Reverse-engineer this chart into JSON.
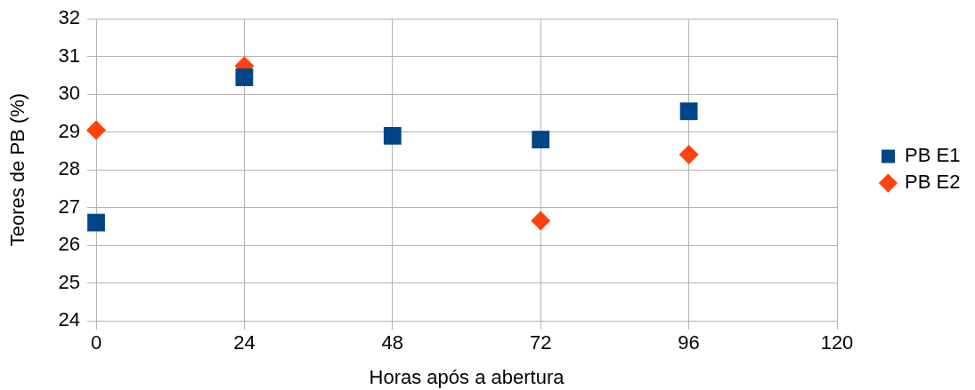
{
  "chart_data": {
    "type": "scatter",
    "xlabel": "Horas após a abertura",
    "ylabel": "Teores de PB (%)",
    "x": [
      0,
      24,
      48,
      72,
      96
    ],
    "series": [
      {
        "name": "PB E1",
        "color": "#004586",
        "marker": "square",
        "values": [
          26.6,
          30.45,
          28.9,
          28.8,
          29.55
        ]
      },
      {
        "name": "PB E2",
        "color": "#ff420e",
        "marker": "diamond",
        "values": [
          29.05,
          30.75,
          null,
          26.65,
          28.4
        ]
      }
    ],
    "xlim": [
      0,
      120
    ],
    "xticks": [
      0,
      24,
      48,
      72,
      96,
      120
    ],
    "ylim": [
      24,
      32
    ],
    "yticks": [
      24,
      25,
      26,
      27,
      28,
      29,
      30,
      31,
      32
    ],
    "grid": true,
    "legend": "right"
  }
}
